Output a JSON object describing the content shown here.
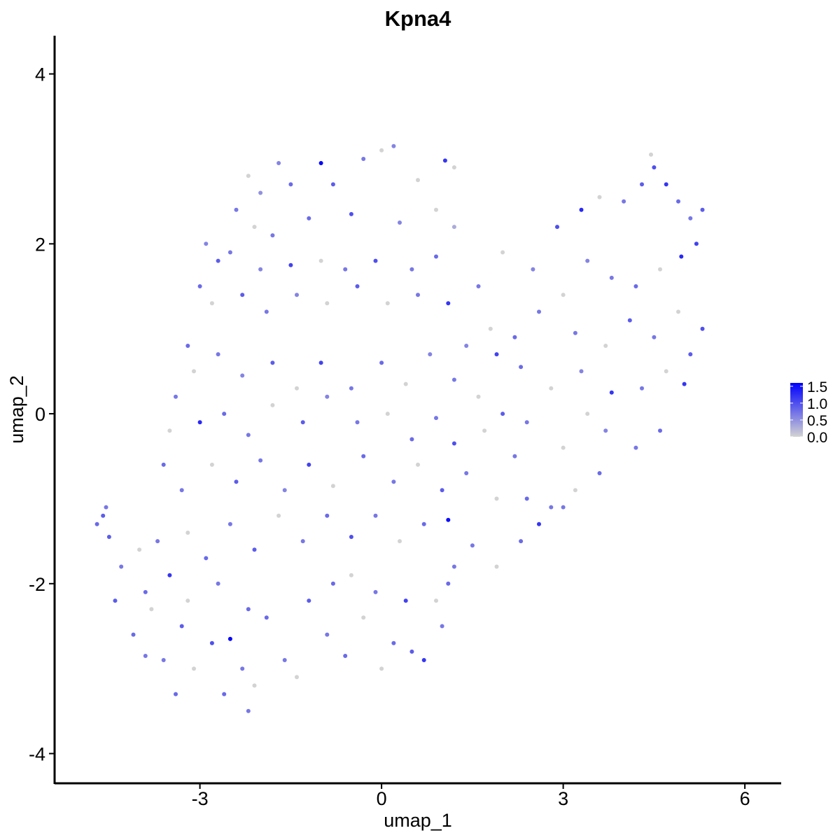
{
  "chart_data": {
    "type": "scatter",
    "title": "Kpna4",
    "xlabel": "umap_1",
    "ylabel": "umap_2",
    "xlim": [
      -5.4,
      6.6
    ],
    "ylim": [
      -4.35,
      4.45
    ],
    "x_ticks": [
      -3,
      0,
      3,
      6
    ],
    "x_tick_labels": [
      "-3",
      "0",
      "3",
      "6"
    ],
    "y_ticks": [
      -4,
      -2,
      0,
      2,
      4
    ],
    "y_tick_labels": [
      "-4",
      "-2",
      "0",
      "2",
      "4"
    ],
    "grid": false,
    "color_scale": {
      "low_color": "#d3d3d3",
      "high_color": "#0000ff",
      "min": 0.0,
      "max": 1.6,
      "ticks": [
        0.0,
        0.5,
        1.0,
        1.5
      ],
      "tick_labels": [
        "0.0",
        "0.5",
        "1.0",
        "1.5"
      ],
      "legend_position": "right"
    },
    "points": [
      [
        0.0,
        3.1,
        0.0
      ],
      [
        -0.3,
        3.0,
        0.7
      ],
      [
        -1.0,
        2.95,
        1.6
      ],
      [
        1.05,
        2.98,
        1.2
      ],
      [
        0.2,
        3.15,
        0.6
      ],
      [
        -1.5,
        2.7,
        0.8
      ],
      [
        -2.0,
        2.6,
        0.5
      ],
      [
        -2.2,
        2.8,
        0.0
      ],
      [
        -1.7,
        2.95,
        0.6
      ],
      [
        -0.8,
        2.7,
        0.9
      ],
      [
        0.6,
        2.75,
        0.0
      ],
      [
        1.2,
        2.9,
        0.0
      ],
      [
        -2.4,
        2.4,
        0.7
      ],
      [
        -2.1,
        2.2,
        0.0
      ],
      [
        -1.8,
        2.1,
        0.7
      ],
      [
        -1.2,
        2.3,
        0.8
      ],
      [
        -0.5,
        2.35,
        1.0
      ],
      [
        0.3,
        2.25,
        0.6
      ],
      [
        0.9,
        2.4,
        0.0
      ],
      [
        1.2,
        2.2,
        0.3
      ],
      [
        -2.9,
        2.0,
        0.6
      ],
      [
        -2.7,
        1.8,
        0.9
      ],
      [
        -2.5,
        1.9,
        0.7
      ],
      [
        -2.0,
        1.7,
        0.6
      ],
      [
        -1.5,
        1.75,
        1.1
      ],
      [
        -1.0,
        1.8,
        0.0
      ],
      [
        -0.6,
        1.7,
        0.7
      ],
      [
        -0.1,
        1.8,
        1.0
      ],
      [
        0.5,
        1.7,
        0.7
      ],
      [
        0.9,
        1.85,
        0.8
      ],
      [
        -3.0,
        1.5,
        0.8
      ],
      [
        -2.8,
        1.3,
        0.0
      ],
      [
        -2.3,
        1.4,
        0.9
      ],
      [
        -1.9,
        1.2,
        0.7
      ],
      [
        -1.4,
        1.4,
        0.6
      ],
      [
        -0.9,
        1.3,
        0.0
      ],
      [
        -0.4,
        1.5,
        0.9
      ],
      [
        0.1,
        1.3,
        0.0
      ],
      [
        0.6,
        1.4,
        0.7
      ],
      [
        1.1,
        1.3,
        1.2
      ],
      [
        1.6,
        1.5,
        0.7
      ],
      [
        2.0,
        1.9,
        0.0
      ],
      [
        2.5,
        1.7,
        0.6
      ],
      [
        2.9,
        2.2,
        1.0
      ],
      [
        3.3,
        2.4,
        1.3
      ],
      [
        3.6,
        2.55,
        0.0
      ],
      [
        4.0,
        2.5,
        0.7
      ],
      [
        4.3,
        2.7,
        0.9
      ],
      [
        4.5,
        2.9,
        1.0
      ],
      [
        4.45,
        3.05,
        0.0
      ],
      [
        4.7,
        2.7,
        1.2
      ],
      [
        4.9,
        2.5,
        0.8
      ],
      [
        5.1,
        2.3,
        0.7
      ],
      [
        5.3,
        2.4,
        0.9
      ],
      [
        5.2,
        2.0,
        1.1
      ],
      [
        4.95,
        1.85,
        1.3
      ],
      [
        4.6,
        1.7,
        0.0
      ],
      [
        4.2,
        1.5,
        0.8
      ],
      [
        3.8,
        1.6,
        0.7
      ],
      [
        3.4,
        1.8,
        0.6
      ],
      [
        3.0,
        1.4,
        0.0
      ],
      [
        2.6,
        1.2,
        0.7
      ],
      [
        2.2,
        0.9,
        0.8
      ],
      [
        1.8,
        1.0,
        0.0
      ],
      [
        1.4,
        0.8,
        0.6
      ],
      [
        3.2,
        0.95,
        0.7
      ],
      [
        3.7,
        0.8,
        0.0
      ],
      [
        4.1,
        1.1,
        0.9
      ],
      [
        4.5,
        0.9,
        0.7
      ],
      [
        4.9,
        1.2,
        0.0
      ],
      [
        5.3,
        1.0,
        1.0
      ],
      [
        5.1,
        0.7,
        0.9
      ],
      [
        4.7,
        0.5,
        0.0
      ],
      [
        4.3,
        0.3,
        0.7
      ],
      [
        3.8,
        0.25,
        1.2
      ],
      [
        3.3,
        0.5,
        0.6
      ],
      [
        2.8,
        0.3,
        0.0
      ],
      [
        2.3,
        0.55,
        0.8
      ],
      [
        1.9,
        0.7,
        1.1
      ],
      [
        5.0,
        0.35,
        1.2
      ],
      [
        -3.2,
        0.8,
        0.8
      ],
      [
        -3.1,
        0.5,
        0.0
      ],
      [
        -2.7,
        0.7,
        0.7
      ],
      [
        -2.3,
        0.45,
        0.6
      ],
      [
        -1.8,
        0.6,
        0.9
      ],
      [
        -1.4,
        0.3,
        0.0
      ],
      [
        -1.0,
        0.6,
        1.1
      ],
      [
        -0.5,
        0.3,
        0.7
      ],
      [
        0.0,
        0.6,
        0.8
      ],
      [
        0.4,
        0.35,
        0.0
      ],
      [
        0.8,
        0.7,
        0.6
      ],
      [
        1.2,
        0.4,
        0.7
      ],
      [
        1.6,
        0.2,
        0.0
      ],
      [
        2.0,
        0.0,
        0.9
      ],
      [
        2.4,
        -0.1,
        0.7
      ],
      [
        3.4,
        0.0,
        0.0
      ],
      [
        3.7,
        -0.2,
        0.6
      ],
      [
        4.2,
        -0.4,
        0.7
      ],
      [
        4.6,
        -0.2,
        0.8
      ],
      [
        3.0,
        -0.4,
        0.0
      ],
      [
        -3.4,
        0.2,
        0.7
      ],
      [
        -3.5,
        -0.2,
        0.0
      ],
      [
        -3.0,
        -0.1,
        1.3
      ],
      [
        -2.6,
        0.0,
        0.8
      ],
      [
        -2.2,
        -0.25,
        0.7
      ],
      [
        -1.8,
        0.1,
        0.0
      ],
      [
        -1.3,
        -0.1,
        0.9
      ],
      [
        -0.9,
        0.2,
        0.6
      ],
      [
        -0.4,
        -0.1,
        0.7
      ],
      [
        0.1,
        0.0,
        0.0
      ],
      [
        0.5,
        -0.3,
        0.8
      ],
      [
        0.9,
        -0.05,
        0.7
      ],
      [
        1.2,
        -0.35,
        1.0
      ],
      [
        1.7,
        -0.2,
        0.0
      ],
      [
        2.2,
        -0.5,
        0.7
      ],
      [
        -3.6,
        -0.6,
        0.8
      ],
      [
        -3.3,
        -0.9,
        0.7
      ],
      [
        -2.8,
        -0.6,
        0.0
      ],
      [
        -2.4,
        -0.8,
        0.9
      ],
      [
        -2.0,
        -0.55,
        0.7
      ],
      [
        -1.6,
        -0.9,
        0.6
      ],
      [
        -1.2,
        -0.6,
        1.1
      ],
      [
        -0.8,
        -0.85,
        0.0
      ],
      [
        -0.3,
        -0.5,
        0.8
      ],
      [
        0.2,
        -0.8,
        0.7
      ],
      [
        0.6,
        -0.6,
        0.0
      ],
      [
        1.0,
        -0.9,
        0.9
      ],
      [
        1.4,
        -0.7,
        0.7
      ],
      [
        1.9,
        -1.0,
        0.0
      ],
      [
        2.4,
        -1.0,
        0.8
      ],
      [
        2.8,
        -1.1,
        0.7
      ],
      [
        3.2,
        -0.9,
        0.0
      ],
      [
        3.6,
        -0.7,
        0.8
      ],
      [
        2.6,
        -1.3,
        1.2
      ],
      [
        3.0,
        -1.1,
        0.7
      ],
      [
        -4.7,
        -1.3,
        0.8
      ],
      [
        -4.6,
        -1.2,
        0.9
      ],
      [
        -4.55,
        -1.1,
        0.7
      ],
      [
        -4.5,
        -1.45,
        0.9
      ],
      [
        -4.3,
        -1.8,
        0.7
      ],
      [
        -4.0,
        -1.6,
        0.0
      ],
      [
        -3.9,
        -2.1,
        0.8
      ],
      [
        -3.7,
        -1.5,
        0.7
      ],
      [
        -3.5,
        -1.9,
        1.2
      ],
      [
        -3.2,
        -1.4,
        0.0
      ],
      [
        -2.9,
        -1.7,
        0.8
      ],
      [
        -2.5,
        -1.3,
        0.7
      ],
      [
        -2.1,
        -1.6,
        0.9
      ],
      [
        -1.7,
        -1.2,
        0.0
      ],
      [
        -1.3,
        -1.5,
        0.7
      ],
      [
        -0.9,
        -1.2,
        0.8
      ],
      [
        -0.5,
        -1.45,
        1.0
      ],
      [
        -0.1,
        -1.2,
        0.7
      ],
      [
        0.3,
        -1.5,
        0.0
      ],
      [
        0.7,
        -1.3,
        0.8
      ],
      [
        1.1,
        -1.25,
        1.5
      ],
      [
        1.5,
        -1.55,
        0.7
      ],
      [
        1.9,
        -1.8,
        0.0
      ],
      [
        2.3,
        -1.5,
        0.8
      ],
      [
        1.2,
        -1.8,
        0.7
      ],
      [
        -4.4,
        -2.2,
        0.9
      ],
      [
        -4.1,
        -2.6,
        0.8
      ],
      [
        -3.8,
        -2.3,
        0.0
      ],
      [
        -3.6,
        -2.9,
        0.7
      ],
      [
        -3.3,
        -2.5,
        0.9
      ],
      [
        -3.1,
        -3.0,
        0.0
      ],
      [
        -2.8,
        -2.7,
        1.0
      ],
      [
        -2.5,
        -2.65,
        1.6
      ],
      [
        -2.3,
        -3.0,
        0.7
      ],
      [
        -2.6,
        -3.3,
        0.8
      ],
      [
        -2.2,
        -3.5,
        0.7
      ],
      [
        -2.1,
        -3.2,
        0.0
      ],
      [
        -1.9,
        -2.4,
        0.8
      ],
      [
        -1.6,
        -2.9,
        0.7
      ],
      [
        -1.4,
        -3.1,
        0.0
      ],
      [
        -1.2,
        -2.2,
        0.9
      ],
      [
        -0.9,
        -2.6,
        0.7
      ],
      [
        -0.6,
        -2.85,
        0.8
      ],
      [
        -0.3,
        -2.4,
        0.0
      ],
      [
        0.0,
        -3.0,
        0.0
      ],
      [
        0.2,
        -2.7,
        0.8
      ],
      [
        0.5,
        -2.8,
        0.9
      ],
      [
        0.7,
        -2.9,
        1.2
      ],
      [
        1.0,
        -2.5,
        0.7
      ],
      [
        0.9,
        -2.2,
        0.0
      ],
      [
        1.1,
        -2.0,
        0.8
      ],
      [
        0.4,
        -2.2,
        1.1
      ],
      [
        -0.1,
        -2.1,
        0.7
      ],
      [
        -0.5,
        -1.9,
        0.0
      ],
      [
        -0.8,
        -2.0,
        0.8
      ],
      [
        -2.7,
        -2.0,
        0.7
      ],
      [
        -2.2,
        -2.3,
        0.8
      ],
      [
        -3.2,
        -2.2,
        0.0
      ],
      [
        -3.9,
        -2.85,
        0.7
      ],
      [
        -3.4,
        -3.3,
        0.8
      ]
    ]
  }
}
